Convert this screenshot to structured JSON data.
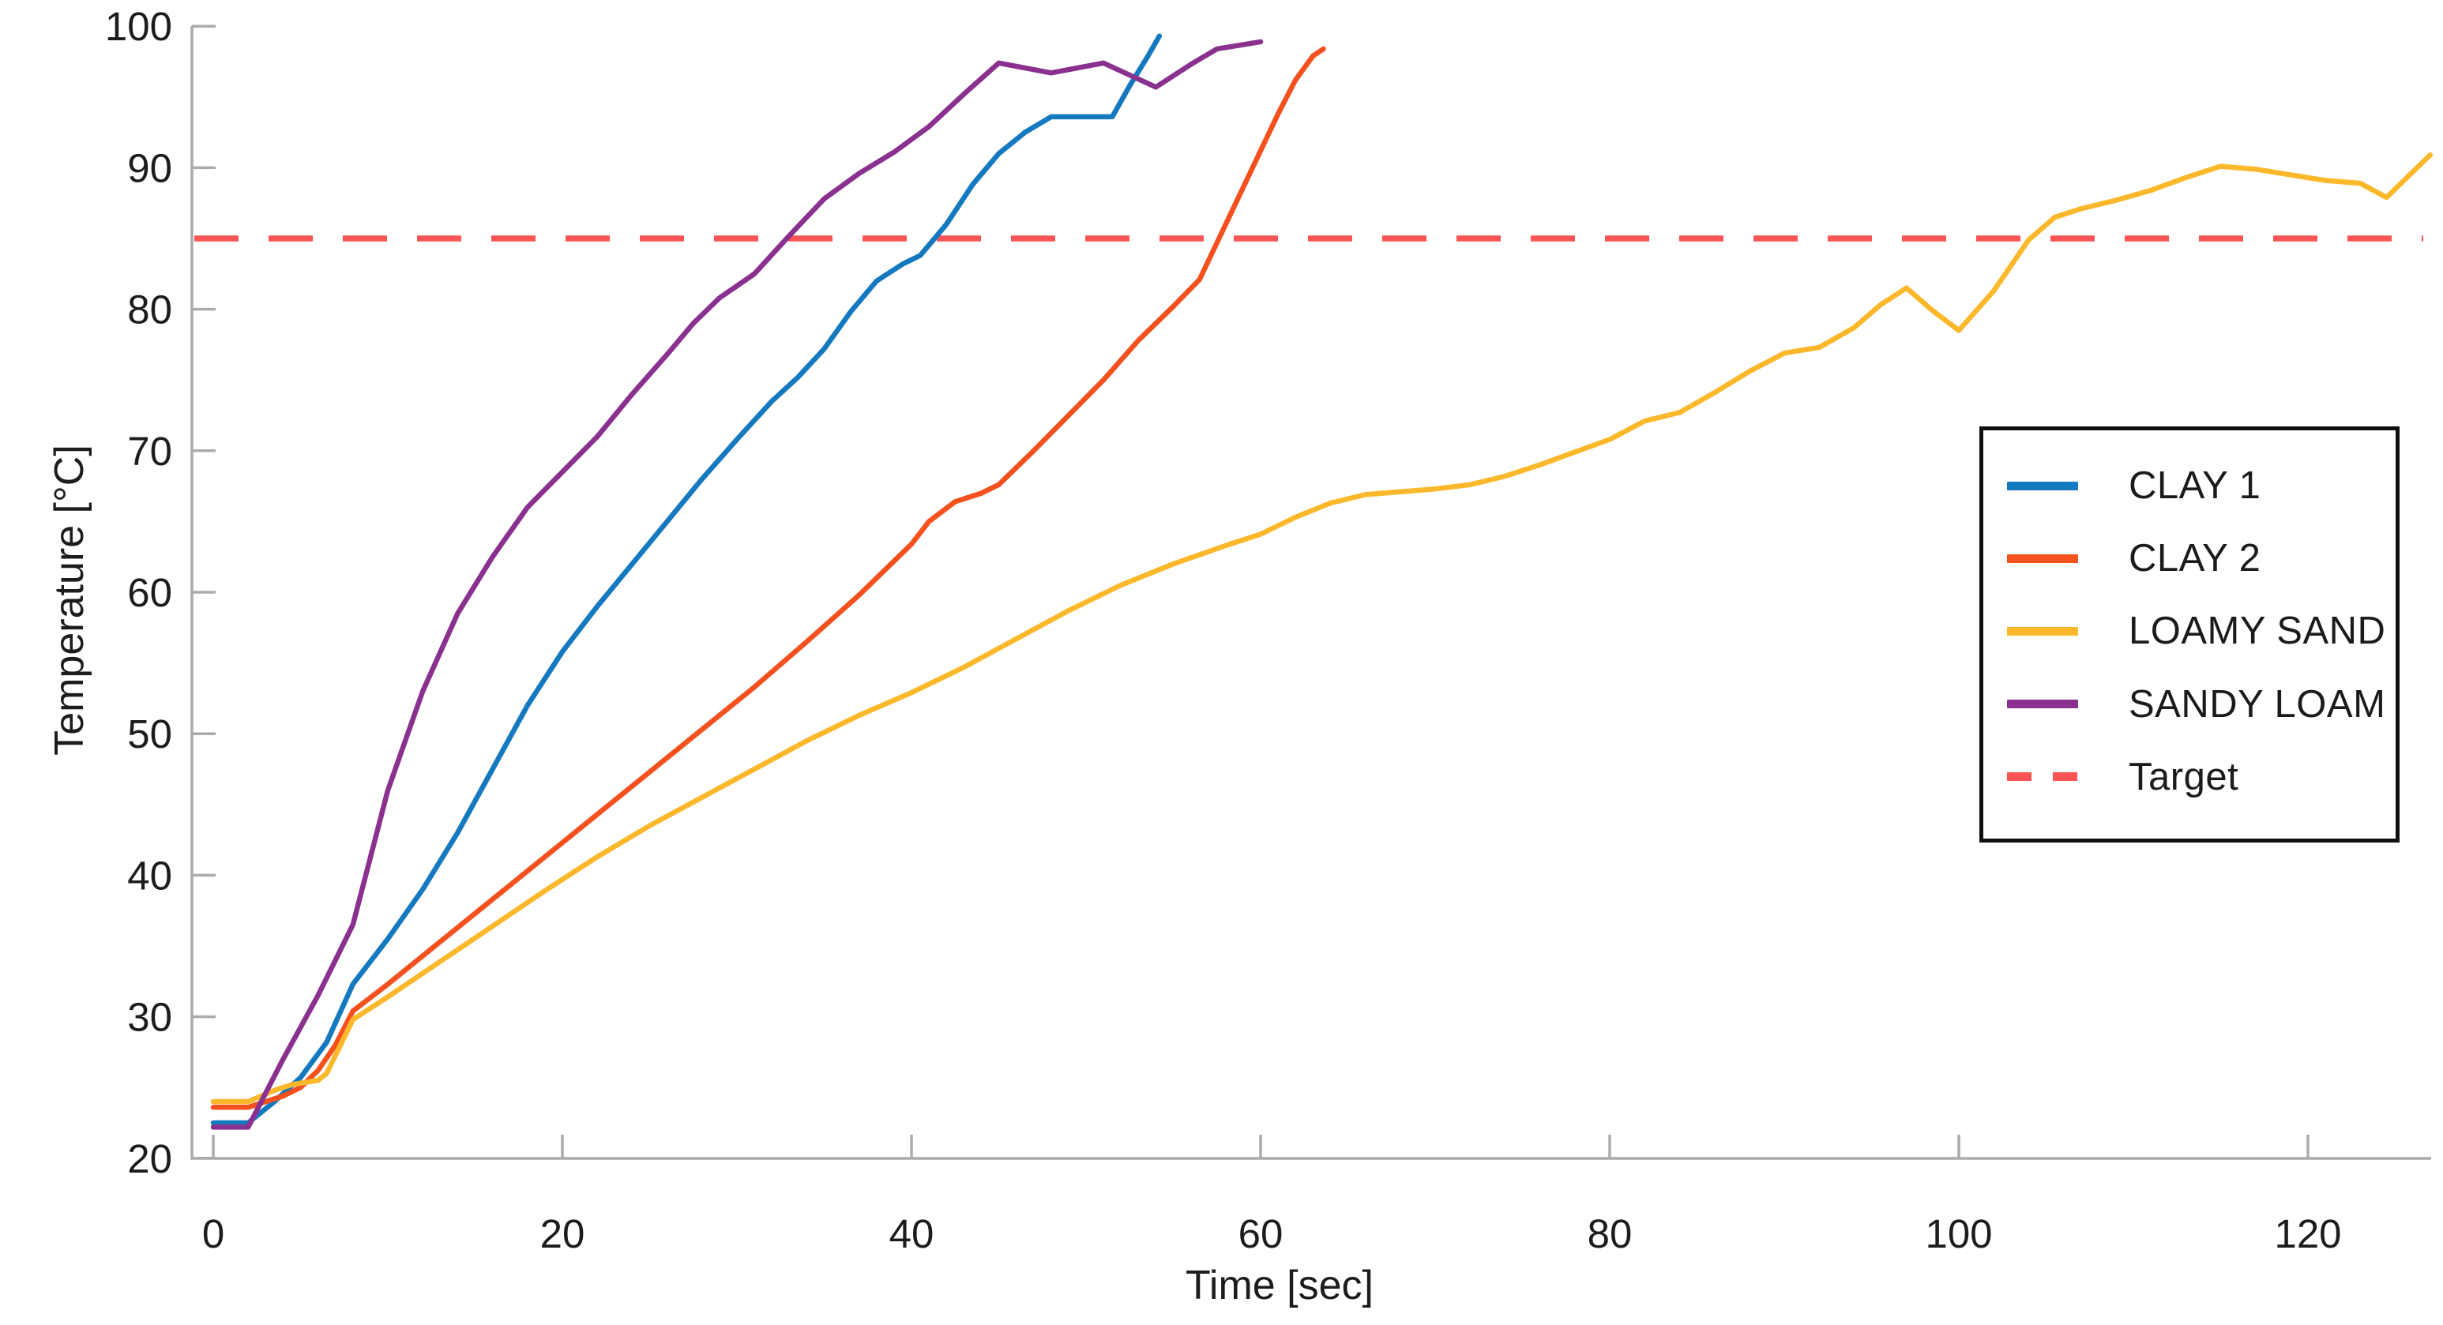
{
  "chart_data": {
    "type": "line",
    "title": "",
    "xlabel": "Time [sec]",
    "ylabel": "Temperature [°C]",
    "xlim": [
      -1.3,
      127.5
    ],
    "ylim": [
      20,
      100
    ],
    "x_ticks": [
      0,
      20,
      40,
      60,
      80,
      100,
      120
    ],
    "y_ticks": [
      20,
      30,
      40,
      50,
      60,
      70,
      80,
      90,
      100
    ],
    "grid": false,
    "legend_position": "right",
    "legend": [
      "CLAY 1",
      "CLAY 2",
      "LOAMY SAND",
      "SANDY LOAM",
      "Target"
    ],
    "target_line": {
      "label": "Target",
      "value": 85,
      "color": "#FA5454",
      "style": "dashed"
    },
    "series": [
      {
        "name": "CLAY 1",
        "color": "#1579C0",
        "points": [
          [
            0,
            22.5
          ],
          [
            2,
            22.5
          ],
          [
            3.5,
            24
          ],
          [
            5,
            25.7
          ],
          [
            6.5,
            28.2
          ],
          [
            8,
            32.3
          ],
          [
            10,
            35.5
          ],
          [
            12,
            39
          ],
          [
            14,
            43
          ],
          [
            16,
            47.5
          ],
          [
            18,
            52
          ],
          [
            20,
            55.8
          ],
          [
            22,
            59
          ],
          [
            24,
            62
          ],
          [
            26,
            65
          ],
          [
            28,
            68
          ],
          [
            30,
            70.8
          ],
          [
            32,
            73.5
          ],
          [
            33.5,
            75.2
          ],
          [
            35,
            77.2
          ],
          [
            36.5,
            79.8
          ],
          [
            38,
            82
          ],
          [
            39.5,
            83.2
          ],
          [
            40.5,
            83.8
          ],
          [
            42,
            86
          ],
          [
            43.5,
            88.8
          ],
          [
            45,
            91
          ],
          [
            46.5,
            92.5
          ],
          [
            48,
            93.6
          ],
          [
            50,
            93.6
          ],
          [
            51.5,
            93.6
          ],
          [
            52.5,
            95.8
          ],
          [
            53.5,
            97.8
          ],
          [
            54.2,
            99.3
          ]
        ]
      },
      {
        "name": "CLAY 2",
        "color": "#F4511E",
        "points": [
          [
            0,
            23.6
          ],
          [
            2,
            23.6
          ],
          [
            4,
            24.4
          ],
          [
            5,
            25
          ],
          [
            6,
            26.2
          ],
          [
            7,
            28
          ],
          [
            8,
            30.4
          ],
          [
            10,
            32.3
          ],
          [
            13,
            35.3
          ],
          [
            16,
            38.3
          ],
          [
            19,
            41.3
          ],
          [
            22,
            44.3
          ],
          [
            25,
            47.3
          ],
          [
            28,
            50.3
          ],
          [
            31,
            53.3
          ],
          [
            34,
            56.5
          ],
          [
            37,
            59.8
          ],
          [
            40,
            63.4
          ],
          [
            41,
            65
          ],
          [
            42.5,
            66.4
          ],
          [
            44,
            67
          ],
          [
            45,
            67.6
          ],
          [
            47,
            70
          ],
          [
            49,
            72.5
          ],
          [
            51,
            75
          ],
          [
            53,
            77.8
          ],
          [
            55,
            80.2
          ],
          [
            56.5,
            82.1
          ],
          [
            58,
            86
          ],
          [
            59,
            88.6
          ],
          [
            60,
            91.2
          ],
          [
            61,
            93.8
          ],
          [
            62,
            96.2
          ],
          [
            63,
            97.9
          ],
          [
            63.6,
            98.4
          ]
        ]
      },
      {
        "name": "LOAMY SAND",
        "color": "#FCB82B",
        "points": [
          [
            0,
            24
          ],
          [
            2,
            24
          ],
          [
            3.5,
            24.8
          ],
          [
            4.5,
            25.2
          ],
          [
            6,
            25.5
          ],
          [
            6.5,
            26
          ],
          [
            8,
            29.8
          ],
          [
            10,
            31.4
          ],
          [
            13,
            33.9
          ],
          [
            16,
            36.4
          ],
          [
            19,
            38.9
          ],
          [
            22,
            41.3
          ],
          [
            25,
            43.5
          ],
          [
            28,
            45.5
          ],
          [
            31,
            47.5
          ],
          [
            34,
            49.5
          ],
          [
            37,
            51.3
          ],
          [
            40,
            52.9
          ],
          [
            43,
            54.7
          ],
          [
            46,
            56.7
          ],
          [
            49,
            58.7
          ],
          [
            52,
            60.5
          ],
          [
            55,
            62
          ],
          [
            58,
            63.3
          ],
          [
            60,
            64.1
          ],
          [
            62,
            65.3
          ],
          [
            64,
            66.3
          ],
          [
            66,
            66.9
          ],
          [
            68,
            67.1
          ],
          [
            70,
            67.3
          ],
          [
            72,
            67.6
          ],
          [
            74,
            68.2
          ],
          [
            76,
            69
          ],
          [
            78,
            69.9
          ],
          [
            80,
            70.8
          ],
          [
            82,
            72.1
          ],
          [
            84,
            72.7
          ],
          [
            86,
            74.1
          ],
          [
            88,
            75.6
          ],
          [
            90,
            76.9
          ],
          [
            92,
            77.3
          ],
          [
            94,
            78.7
          ],
          [
            95.5,
            80.3
          ],
          [
            97,
            81.5
          ],
          [
            98.5,
            79.9
          ],
          [
            100,
            78.5
          ],
          [
            102,
            81.3
          ],
          [
            104,
            84.9
          ],
          [
            105.5,
            86.5
          ],
          [
            107,
            87.1
          ],
          [
            109,
            87.7
          ],
          [
            111,
            88.4
          ],
          [
            113,
            89.3
          ],
          [
            115,
            90.1
          ],
          [
            117,
            89.9
          ],
          [
            119,
            89.5
          ],
          [
            121,
            89.1
          ],
          [
            123,
            88.9
          ],
          [
            124.5,
            87.9
          ],
          [
            127,
            90.9
          ]
        ]
      },
      {
        "name": "SANDY LOAM",
        "color": "#8A3190",
        "points": [
          [
            0,
            22.2
          ],
          [
            2,
            22.2
          ],
          [
            4,
            27
          ],
          [
            6,
            31.5
          ],
          [
            8,
            36.5
          ],
          [
            10,
            46
          ],
          [
            12,
            53
          ],
          [
            14,
            58.5
          ],
          [
            16,
            62.5
          ],
          [
            18,
            66
          ],
          [
            20,
            68.5
          ],
          [
            22,
            71
          ],
          [
            24,
            74
          ],
          [
            26,
            76.8
          ],
          [
            27.5,
            79
          ],
          [
            29,
            80.8
          ],
          [
            31,
            82.5
          ],
          [
            33,
            85.2
          ],
          [
            35,
            87.8
          ],
          [
            37,
            89.6
          ],
          [
            39,
            91.1
          ],
          [
            41,
            92.9
          ],
          [
            43,
            95.2
          ],
          [
            45,
            97.4
          ],
          [
            48,
            96.7
          ],
          [
            51,
            97.4
          ],
          [
            54,
            95.7
          ],
          [
            56,
            97.3
          ],
          [
            57.5,
            98.4
          ],
          [
            60,
            98.9
          ]
        ]
      }
    ]
  },
  "colors": {
    "axis": "#ABABAB",
    "text": "#1c1c1c",
    "background": "#ffffff",
    "legend_border": "#0f0f0f"
  }
}
